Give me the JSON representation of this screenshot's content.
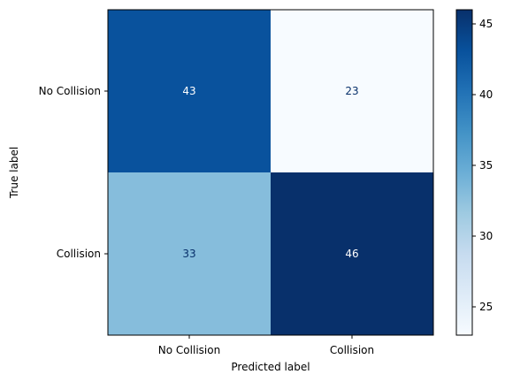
{
  "chart_data": {
    "type": "heatmap",
    "title": "",
    "xlabel": "Predicted label",
    "ylabel": "True label",
    "x_categories": [
      "No Collision",
      "Collision"
    ],
    "y_categories": [
      "No Collision",
      "Collision"
    ],
    "values": [
      [
        43,
        23
      ],
      [
        33,
        46
      ]
    ],
    "colormap": "Blues",
    "colorbar": {
      "range": [
        23,
        46
      ],
      "ticks": [
        25,
        30,
        35,
        40,
        45
      ]
    },
    "grid": false
  }
}
